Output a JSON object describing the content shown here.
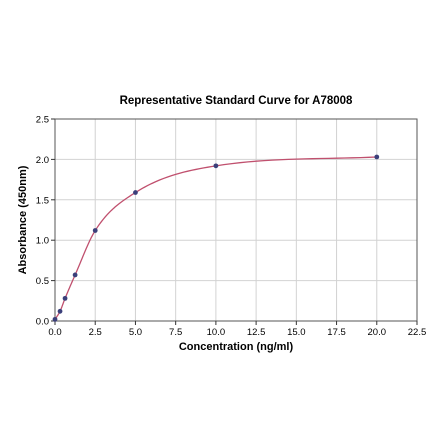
{
  "chart_data": {
    "type": "scatter",
    "title": "Representative Standard Curve for A78008",
    "xlabel": "Concentration (ng/ml)",
    "ylabel": "Absorbance (450nm)",
    "xlim": [
      0,
      22.5
    ],
    "ylim": [
      0,
      2.5
    ],
    "x_ticks": [
      "0.0",
      "2.5",
      "5.0",
      "7.5",
      "10.0",
      "12.5",
      "15.0",
      "17.5",
      "20.0",
      "22.5"
    ],
    "y_ticks": [
      "0.0",
      "0.5",
      "1.0",
      "1.5",
      "2.0",
      "2.5"
    ],
    "grid": true,
    "series": [
      {
        "points": [
          {
            "x": 0.0,
            "y": 0.02
          },
          {
            "x": 0.313,
            "y": 0.12
          },
          {
            "x": 0.625,
            "y": 0.28
          },
          {
            "x": 1.25,
            "y": 0.57
          },
          {
            "x": 2.5,
            "y": 1.12
          },
          {
            "x": 5.0,
            "y": 1.59
          },
          {
            "x": 10.0,
            "y": 1.92
          },
          {
            "x": 20.0,
            "y": 2.03
          }
        ],
        "marker_color": "#3b3f7a",
        "fit_line_color": "#c0506e"
      }
    ]
  }
}
